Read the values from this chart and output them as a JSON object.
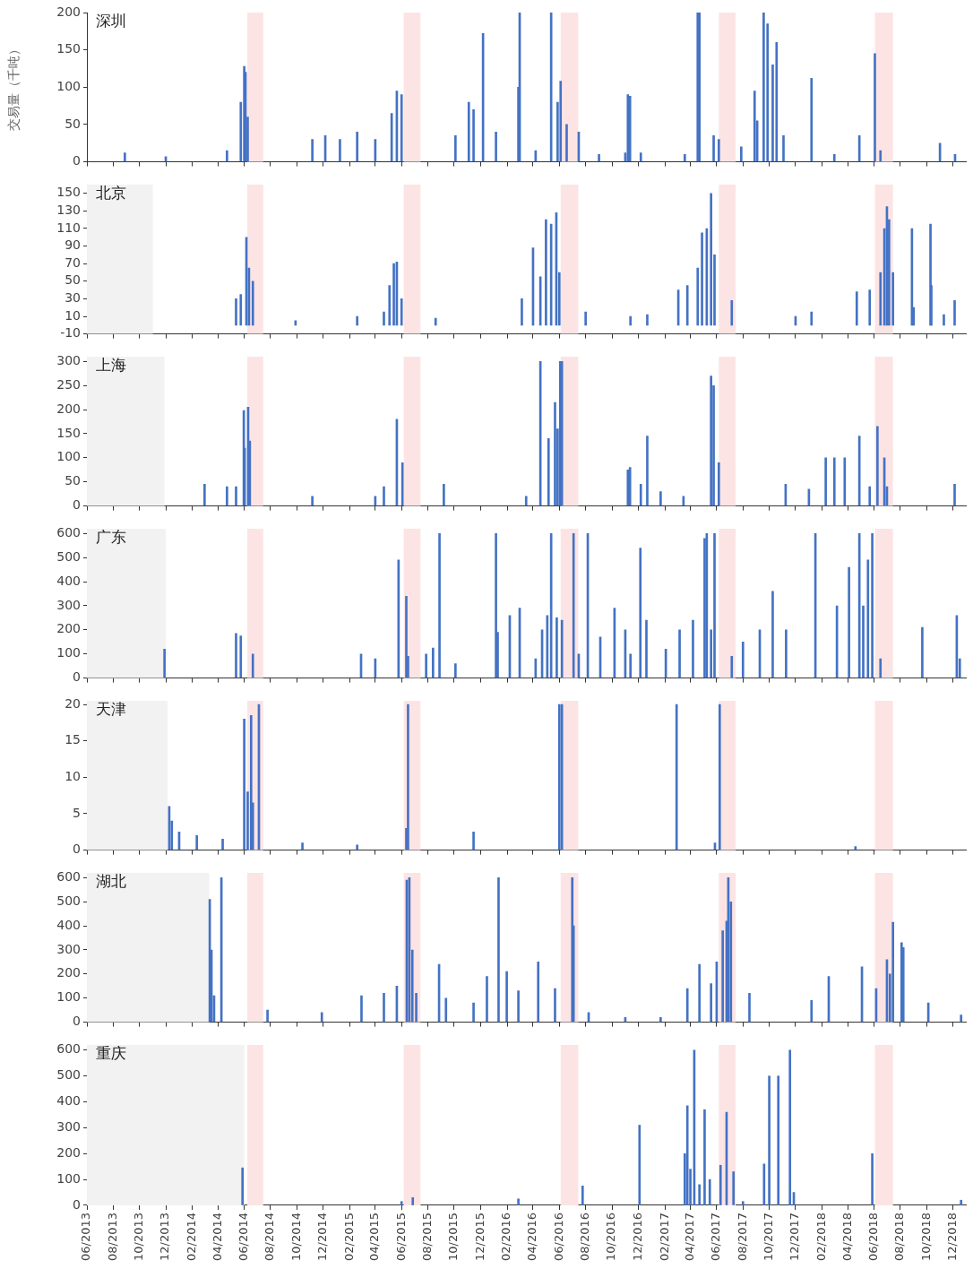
{
  "chart_data": [
    {
      "type": "bar",
      "title": "深圳",
      "ylabel": "交易量（千吨）",
      "color": "#4472c4",
      "tick_labels": "y",
      "x": [
        "2013-08-28",
        "2013-12-01",
        "2014-04-22",
        "2014-05-24",
        "2014-06-01",
        "2014-06-04",
        "2014-06-09",
        "2014-11-06",
        "2014-12-06",
        "2015-01-09",
        "2015-02-18",
        "2015-04-01",
        "2015-05-09",
        "2015-05-21",
        "2015-06-01",
        "2015-10-04",
        "2015-11-04",
        "2015-11-15",
        "2015-12-07",
        "2016-01-06",
        "2016-02-27",
        "2016-03-01",
        "2016-04-07",
        "2016-05-13",
        "2016-05-28",
        "2016-06-04",
        "2016-06-18",
        "2016-07-16",
        "2016-09-01",
        "2016-11-01",
        "2016-11-07",
        "2016-11-12",
        "2016-12-07",
        "2017-03-19",
        "2017-04-18",
        "2017-04-22",
        "2017-05-25",
        "2017-06-06",
        "2017-07-28",
        "2017-08-28",
        "2017-09-03",
        "2017-09-18",
        "2017-09-27",
        "2017-10-09",
        "2017-10-18",
        "2017-11-03",
        "2018-01-07",
        "2018-03-01",
        "2018-04-28",
        "2018-06-03",
        "2018-06-16",
        "2018-11-01",
        "2018-12-06"
      ],
      "values": [
        12,
        7,
        15,
        80,
        128,
        120,
        60,
        30,
        35,
        30,
        40,
        30,
        65,
        95,
        90,
        35,
        80,
        70,
        172,
        40,
        100,
        200,
        15,
        200,
        80,
        108,
        50,
        40,
        10,
        12,
        90,
        88,
        12,
        10,
        200,
        200,
        35,
        30,
        20,
        95,
        55,
        200,
        185,
        130,
        160,
        35,
        112,
        10,
        35,
        145,
        15,
        25,
        10
      ],
      "xlim": [
        "2013-06-01",
        "2018-12-31"
      ],
      "ylim": [
        0,
        200
      ],
      "yticks": [
        0,
        50,
        100,
        150,
        200
      ],
      "xticks": [
        {
          "value": "2013-06",
          "label": null
        },
        {
          "value": "2013-08",
          "label": null
        },
        {
          "value": "2013-10",
          "label": null
        },
        {
          "value": "2013-12",
          "label": null
        },
        {
          "value": "2014-02",
          "label": null
        },
        {
          "value": "2014-04",
          "label": null
        },
        {
          "value": "2014-06",
          "label": null
        },
        {
          "value": "2014-08",
          "label": null
        },
        {
          "value": "2014-10",
          "label": null
        },
        {
          "value": "2014-12",
          "label": null
        },
        {
          "value": "2015-02",
          "label": null
        },
        {
          "value": "2015-04",
          "label": null
        },
        {
          "value": "2015-06",
          "label": null
        },
        {
          "value": "2015-08",
          "label": null
        },
        {
          "value": "2015-10",
          "label": null
        },
        {
          "value": "2015-12",
          "label": null
        },
        {
          "value": "2016-02",
          "label": null
        },
        {
          "value": "2016-04",
          "label": null
        },
        {
          "value": "2016-06",
          "label": null
        },
        {
          "value": "2016-08",
          "label": null
        },
        {
          "value": "2016-10",
          "label": null
        },
        {
          "value": "2016-12",
          "label": null
        },
        {
          "value": "2017-02",
          "label": null
        },
        {
          "value": "2017-04",
          "label": null
        },
        {
          "value": "2017-06",
          "label": null
        },
        {
          "value": "2017-08",
          "label": null
        },
        {
          "value": "2017-10",
          "label": null
        },
        {
          "value": "2017-12",
          "label": null
        },
        {
          "value": "2018-02",
          "label": null
        },
        {
          "value": "2018-04",
          "label": null
        },
        {
          "value": "2018-06",
          "label": null
        },
        {
          "value": "2018-08",
          "label": null
        },
        {
          "value": "2018-10",
          "label": null
        },
        {
          "value": "2018-12",
          "label": null
        }
      ],
      "bands": [
        {
          "axis": "x",
          "from": "2014-06-08",
          "to": "2014-07-15",
          "color": "#fde4e4"
        },
        {
          "axis": "x",
          "from": "2015-06-06",
          "to": "2015-07-15",
          "color": "#fde4e4"
        },
        {
          "axis": "x",
          "from": "2016-06-04",
          "to": "2016-07-15",
          "color": "#fde4e4"
        },
        {
          "axis": "x",
          "from": "2017-06-06",
          "to": "2017-07-15",
          "color": "#fde4e4"
        },
        {
          "axis": "x",
          "from": "2018-06-03",
          "to": "2018-07-15",
          "color": "#fde4e4"
        }
      ]
    },
    {
      "type": "bar",
      "title": "北京",
      "color": "#4472c4",
      "tick_labels": "y",
      "x": [
        "2014-05-13",
        "2014-05-24",
        "2014-06-06",
        "2014-06-12",
        "2014-06-21",
        "2014-09-28",
        "2015-02-18",
        "2015-04-21",
        "2015-05-04",
        "2015-05-14",
        "2015-05-21",
        "2015-06-01",
        "2015-08-19",
        "2016-03-06",
        "2016-04-01",
        "2016-04-18",
        "2016-05-01",
        "2016-05-13",
        "2016-05-25",
        "2016-06-01",
        "2016-08-01",
        "2016-11-13",
        "2016-12-22",
        "2017-03-04",
        "2017-03-25",
        "2017-04-18",
        "2017-04-28",
        "2017-05-09",
        "2017-05-19",
        "2017-05-27",
        "2017-07-06",
        "2017-12-01",
        "2018-01-07",
        "2018-04-22",
        "2018-05-22",
        "2018-06-16",
        "2018-06-25",
        "2018-07-01",
        "2018-07-06",
        "2018-07-15",
        "2018-08-28",
        "2018-09-01",
        "2018-10-10",
        "2018-10-12",
        "2018-11-10",
        "2018-12-05"
      ],
      "values": [
        30,
        35,
        100,
        65,
        50,
        5,
        10,
        15,
        45,
        70,
        72,
        30,
        8,
        30,
        88,
        55,
        120,
        115,
        128,
        60,
        15,
        10,
        12,
        40,
        45,
        65,
        105,
        110,
        150,
        80,
        28,
        10,
        15,
        38,
        40,
        60,
        110,
        135,
        120,
        60,
        110,
        20,
        115,
        45,
        12,
        28
      ],
      "xlim": [
        "2013-06-01",
        "2018-12-31"
      ],
      "ylim": [
        -10,
        160
      ],
      "yticks": [
        -10,
        10,
        30,
        50,
        70,
        90,
        110,
        130,
        150
      ],
      "xticks": [
        {
          "value": "2013-06",
          "label": null
        },
        {
          "value": "2013-08",
          "label": null
        },
        {
          "value": "2013-10",
          "label": null
        },
        {
          "value": "2013-12",
          "label": null
        },
        {
          "value": "2014-02",
          "label": null
        },
        {
          "value": "2014-04",
          "label": null
        },
        {
          "value": "2014-06",
          "label": null
        },
        {
          "value": "2014-08",
          "label": null
        },
        {
          "value": "2014-10",
          "label": null
        },
        {
          "value": "2014-12",
          "label": null
        },
        {
          "value": "2015-02",
          "label": null
        },
        {
          "value": "2015-04",
          "label": null
        },
        {
          "value": "2015-06",
          "label": null
        },
        {
          "value": "2015-08",
          "label": null
        },
        {
          "value": "2015-10",
          "label": null
        },
        {
          "value": "2015-12",
          "label": null
        },
        {
          "value": "2016-02",
          "label": null
        },
        {
          "value": "2016-04",
          "label": null
        },
        {
          "value": "2016-06",
          "label": null
        },
        {
          "value": "2016-08",
          "label": null
        },
        {
          "value": "2016-10",
          "label": null
        },
        {
          "value": "2016-12",
          "label": null
        },
        {
          "value": "2017-02",
          "label": null
        },
        {
          "value": "2017-04",
          "label": null
        },
        {
          "value": "2017-06",
          "label": null
        },
        {
          "value": "2017-08",
          "label": null
        },
        {
          "value": "2017-10",
          "label": null
        },
        {
          "value": "2017-12",
          "label": null
        },
        {
          "value": "2018-02",
          "label": null
        },
        {
          "value": "2018-04",
          "label": null
        },
        {
          "value": "2018-06",
          "label": null
        },
        {
          "value": "2018-08",
          "label": null
        },
        {
          "value": "2018-10",
          "label": null
        },
        {
          "value": "2018-12",
          "label": null
        }
      ],
      "bands": [
        {
          "axis": "x",
          "from": "2013-06-01",
          "to": "2013-11-01",
          "color": "#f2f2f2"
        },
        {
          "axis": "x",
          "from": "2014-06-08",
          "to": "2014-07-15",
          "color": "#fde4e4"
        },
        {
          "axis": "x",
          "from": "2015-06-06",
          "to": "2015-07-15",
          "color": "#fde4e4"
        },
        {
          "axis": "x",
          "from": "2016-06-04",
          "to": "2016-07-15",
          "color": "#fde4e4"
        },
        {
          "axis": "x",
          "from": "2017-06-06",
          "to": "2017-07-15",
          "color": "#fde4e4"
        },
        {
          "axis": "x",
          "from": "2018-06-03",
          "to": "2018-07-15",
          "color": "#fde4e4"
        }
      ]
    },
    {
      "type": "bar",
      "title": "上海",
      "color": "#4472c4",
      "tick_labels": "y",
      "x": [
        "2014-03-01",
        "2014-04-22",
        "2014-05-13",
        "2014-05-31",
        "2014-06-02",
        "2014-06-10",
        "2014-06-14",
        "2014-11-06",
        "2015-04-01",
        "2015-04-21",
        "2015-05-21",
        "2015-06-03",
        "2015-09-07",
        "2016-03-16",
        "2016-04-18",
        "2016-05-07",
        "2016-05-22",
        "2016-05-28",
        "2016-06-03",
        "2016-06-07",
        "2016-11-07",
        "2016-11-12",
        "2016-12-07",
        "2016-12-22",
        "2017-01-22",
        "2017-03-16",
        "2017-05-19",
        "2017-05-25",
        "2017-06-06",
        "2017-11-08",
        "2018-01-01",
        "2018-02-09",
        "2018-03-01",
        "2018-03-25",
        "2018-04-28",
        "2018-05-22",
        "2018-06-09",
        "2018-06-25",
        "2018-07-01",
        "2018-12-05"
      ],
      "values": [
        45,
        40,
        40,
        198,
        120,
        205,
        135,
        20,
        20,
        40,
        180,
        90,
        45,
        20,
        300,
        140,
        215,
        160,
        300,
        300,
        75,
        80,
        45,
        145,
        30,
        20,
        270,
        250,
        90,
        45,
        35,
        100,
        100,
        100,
        145,
        40,
        165,
        100,
        40,
        45
      ],
      "xlim": [
        "2013-06-01",
        "2018-12-31"
      ],
      "ylim": [
        0,
        310
      ],
      "yticks": [
        0,
        50,
        100,
        150,
        200,
        250,
        300
      ],
      "xticks": [
        {
          "value": "2013-06",
          "label": null
        },
        {
          "value": "2013-08",
          "label": null
        },
        {
          "value": "2013-10",
          "label": null
        },
        {
          "value": "2013-12",
          "label": null
        },
        {
          "value": "2014-02",
          "label": null
        },
        {
          "value": "2014-04",
          "label": null
        },
        {
          "value": "2014-06",
          "label": null
        },
        {
          "value": "2014-08",
          "label": null
        },
        {
          "value": "2014-10",
          "label": null
        },
        {
          "value": "2014-12",
          "label": null
        },
        {
          "value": "2015-02",
          "label": null
        },
        {
          "value": "2015-04",
          "label": null
        },
        {
          "value": "2015-06",
          "label": null
        },
        {
          "value": "2015-08",
          "label": null
        },
        {
          "value": "2015-10",
          "label": null
        },
        {
          "value": "2015-12",
          "label": null
        },
        {
          "value": "2016-02",
          "label": null
        },
        {
          "value": "2016-04",
          "label": null
        },
        {
          "value": "2016-06",
          "label": null
        },
        {
          "value": "2016-08",
          "label": null
        },
        {
          "value": "2016-10",
          "label": null
        },
        {
          "value": "2016-12",
          "label": null
        },
        {
          "value": "2017-02",
          "label": null
        },
        {
          "value": "2017-04",
          "label": null
        },
        {
          "value": "2017-06",
          "label": null
        },
        {
          "value": "2017-08",
          "label": null
        },
        {
          "value": "2017-10",
          "label": null
        },
        {
          "value": "2017-12",
          "label": null
        },
        {
          "value": "2018-02",
          "label": null
        },
        {
          "value": "2018-04",
          "label": null
        },
        {
          "value": "2018-06",
          "label": null
        },
        {
          "value": "2018-08",
          "label": null
        },
        {
          "value": "2018-10",
          "label": null
        },
        {
          "value": "2018-12",
          "label": null
        }
      ],
      "bands": [
        {
          "axis": "x",
          "from": "2013-06-01",
          "to": "2013-11-28",
          "color": "#f2f2f2"
        },
        {
          "axis": "x",
          "from": "2014-06-08",
          "to": "2014-07-15",
          "color": "#fde4e4"
        },
        {
          "axis": "x",
          "from": "2015-06-06",
          "to": "2015-07-15",
          "color": "#fde4e4"
        },
        {
          "axis": "x",
          "from": "2016-06-04",
          "to": "2016-07-15",
          "color": "#fde4e4"
        },
        {
          "axis": "x",
          "from": "2017-06-06",
          "to": "2017-07-15",
          "color": "#fde4e4"
        },
        {
          "axis": "x",
          "from": "2018-06-03",
          "to": "2018-07-15",
          "color": "#fde4e4"
        }
      ]
    },
    {
      "type": "bar",
      "title": "广东",
      "color": "#4472c4",
      "tick_labels": "y",
      "x": [
        "2013-11-28",
        "2014-05-13",
        "2014-05-24",
        "2014-06-21",
        "2015-02-27",
        "2015-04-01",
        "2015-05-25",
        "2015-06-12",
        "2015-06-16",
        "2015-07-28",
        "2015-08-13",
        "2015-08-28",
        "2015-10-04",
        "2016-01-06",
        "2016-01-10",
        "2016-02-07",
        "2016-03-01",
        "2016-04-07",
        "2016-04-22",
        "2016-05-04",
        "2016-05-13",
        "2016-05-26",
        "2016-06-07",
        "2016-07-04",
        "2016-07-16",
        "2016-08-06",
        "2016-09-04",
        "2016-10-07",
        "2016-11-01",
        "2016-11-13",
        "2016-12-06",
        "2016-12-20",
        "2017-02-03",
        "2017-03-07",
        "2017-04-07",
        "2017-05-04",
        "2017-05-09",
        "2017-05-19",
        "2017-05-27",
        "2017-07-06",
        "2017-08-01",
        "2017-09-09",
        "2017-10-09",
        "2017-11-09",
        "2018-01-16",
        "2018-03-07",
        "2018-04-04",
        "2018-04-28",
        "2018-05-07",
        "2018-05-18",
        "2018-05-28",
        "2018-06-16",
        "2018-09-21",
        "2018-12-10",
        "2018-12-17"
      ],
      "values": [
        120,
        185,
        175,
        100,
        100,
        80,
        490,
        340,
        90,
        100,
        125,
        600,
        60,
        600,
        190,
        260,
        290,
        80,
        200,
        260,
        600,
        250,
        240,
        600,
        100,
        600,
        170,
        290,
        200,
        100,
        540,
        240,
        120,
        200,
        240,
        580,
        600,
        200,
        600,
        90,
        150,
        200,
        360,
        200,
        600,
        300,
        460,
        600,
        300,
        490,
        600,
        80,
        210,
        260,
        80
      ],
      "xlim": [
        "2013-06-01",
        "2018-12-31"
      ],
      "ylim": [
        0,
        620
      ],
      "yticks": [
        0,
        100,
        200,
        300,
        400,
        500,
        600
      ],
      "xticks": [
        {
          "value": "2013-06",
          "label": null
        },
        {
          "value": "2013-08",
          "label": null
        },
        {
          "value": "2013-10",
          "label": null
        },
        {
          "value": "2013-12",
          "label": null
        },
        {
          "value": "2014-02",
          "label": null
        },
        {
          "value": "2014-04",
          "label": null
        },
        {
          "value": "2014-06",
          "label": null
        },
        {
          "value": "2014-08",
          "label": null
        },
        {
          "value": "2014-10",
          "label": null
        },
        {
          "value": "2014-12",
          "label": null
        },
        {
          "value": "2015-02",
          "label": null
        },
        {
          "value": "2015-04",
          "label": null
        },
        {
          "value": "2015-06",
          "label": null
        },
        {
          "value": "2015-08",
          "label": null
        },
        {
          "value": "2015-10",
          "label": null
        },
        {
          "value": "2015-12",
          "label": null
        },
        {
          "value": "2016-02",
          "label": null
        },
        {
          "value": "2016-04",
          "label": null
        },
        {
          "value": "2016-06",
          "label": null
        },
        {
          "value": "2016-08",
          "label": null
        },
        {
          "value": "2016-10",
          "label": null
        },
        {
          "value": "2016-12",
          "label": null
        },
        {
          "value": "2017-02",
          "label": null
        },
        {
          "value": "2017-04",
          "label": null
        },
        {
          "value": "2017-06",
          "label": null
        },
        {
          "value": "2017-08",
          "label": null
        },
        {
          "value": "2017-10",
          "label": null
        },
        {
          "value": "2017-12",
          "label": null
        },
        {
          "value": "2018-02",
          "label": null
        },
        {
          "value": "2018-04",
          "label": null
        },
        {
          "value": "2018-06",
          "label": null
        },
        {
          "value": "2018-08",
          "label": null
        },
        {
          "value": "2018-10",
          "label": null
        },
        {
          "value": "2018-12",
          "label": null
        }
      ],
      "bands": [
        {
          "axis": "x",
          "from": "2013-06-01",
          "to": "2013-12-01",
          "color": "#f2f2f2"
        },
        {
          "axis": "x",
          "from": "2014-06-08",
          "to": "2014-07-15",
          "color": "#fde4e4"
        },
        {
          "axis": "x",
          "from": "2015-06-06",
          "to": "2015-07-15",
          "color": "#fde4e4"
        },
        {
          "axis": "x",
          "from": "2016-06-04",
          "to": "2016-07-15",
          "color": "#fde4e4"
        },
        {
          "axis": "x",
          "from": "2017-06-06",
          "to": "2017-07-15",
          "color": "#fde4e4"
        },
        {
          "axis": "x",
          "from": "2018-06-03",
          "to": "2018-07-15",
          "color": "#fde4e4"
        }
      ]
    },
    {
      "type": "bar",
      "title": "天津",
      "color": "#4472c4",
      "tick_labels": "y",
      "x": [
        "2013-12-09",
        "2013-12-15",
        "2014-01-01",
        "2014-02-11",
        "2014-04-12",
        "2014-06-01",
        "2014-06-09",
        "2014-06-17",
        "2014-06-21",
        "2014-07-05",
        "2014-10-14",
        "2015-02-18",
        "2015-06-12",
        "2015-06-16",
        "2015-11-15",
        "2016-06-01",
        "2016-06-07",
        "2017-02-28",
        "2017-05-28",
        "2017-06-08",
        "2018-04-19"
      ],
      "values": [
        6,
        4,
        2.5,
        2,
        1.5,
        18,
        8,
        18.5,
        6.5,
        20,
        1,
        0.7,
        3,
        20,
        2.5,
        20,
        20,
        20,
        1,
        20,
        0.5
      ],
      "xlim": [
        "2013-06-01",
        "2018-12-31"
      ],
      "ylim": [
        0,
        20.5
      ],
      "yticks": [
        0,
        5,
        10,
        15,
        20
      ],
      "xticks": [
        {
          "value": "2013-06",
          "label": null
        },
        {
          "value": "2013-08",
          "label": null
        },
        {
          "value": "2013-10",
          "label": null
        },
        {
          "value": "2013-12",
          "label": null
        },
        {
          "value": "2014-02",
          "label": null
        },
        {
          "value": "2014-04",
          "label": null
        },
        {
          "value": "2014-06",
          "label": null
        },
        {
          "value": "2014-08",
          "label": null
        },
        {
          "value": "2014-10",
          "label": null
        },
        {
          "value": "2014-12",
          "label": null
        },
        {
          "value": "2015-02",
          "label": null
        },
        {
          "value": "2015-04",
          "label": null
        },
        {
          "value": "2015-06",
          "label": null
        },
        {
          "value": "2015-08",
          "label": null
        },
        {
          "value": "2015-10",
          "label": null
        },
        {
          "value": "2015-12",
          "label": null
        },
        {
          "value": "2016-02",
          "label": null
        },
        {
          "value": "2016-04",
          "label": null
        },
        {
          "value": "2016-06",
          "label": null
        },
        {
          "value": "2016-08",
          "label": null
        },
        {
          "value": "2016-10",
          "label": null
        },
        {
          "value": "2016-12",
          "label": null
        },
        {
          "value": "2017-02",
          "label": null
        },
        {
          "value": "2017-04",
          "label": null
        },
        {
          "value": "2017-06",
          "label": null
        },
        {
          "value": "2017-08",
          "label": null
        },
        {
          "value": "2017-10",
          "label": null
        },
        {
          "value": "2017-12",
          "label": null
        },
        {
          "value": "2018-02",
          "label": null
        },
        {
          "value": "2018-04",
          "label": null
        },
        {
          "value": "2018-06",
          "label": null
        },
        {
          "value": "2018-08",
          "label": null
        },
        {
          "value": "2018-10",
          "label": null
        },
        {
          "value": "2018-12",
          "label": null
        }
      ],
      "bands": [
        {
          "axis": "x",
          "from": "2013-06-01",
          "to": "2013-12-05",
          "color": "#f2f2f2"
        },
        {
          "axis": "x",
          "from": "2014-06-08",
          "to": "2014-07-15",
          "color": "#fde4e4"
        },
        {
          "axis": "x",
          "from": "2015-06-06",
          "to": "2015-07-15",
          "color": "#fde4e4"
        },
        {
          "axis": "x",
          "from": "2016-06-04",
          "to": "2016-07-15",
          "color": "#fde4e4"
        },
        {
          "axis": "x",
          "from": "2017-06-06",
          "to": "2017-07-15",
          "color": "#fde4e4"
        },
        {
          "axis": "x",
          "from": "2018-06-03",
          "to": "2018-07-15",
          "color": "#fde4e4"
        }
      ]
    },
    {
      "type": "bar",
      "title": "湖北",
      "color": "#4472c4",
      "tick_labels": "y",
      "x": [
        "2014-03-13",
        "2014-03-17",
        "2014-03-23",
        "2014-04-09",
        "2014-07-25",
        "2014-11-28",
        "2015-02-28",
        "2015-04-21",
        "2015-05-21",
        "2015-06-13",
        "2015-06-19",
        "2015-06-26",
        "2015-07-05",
        "2015-08-27",
        "2015-09-12",
        "2015-11-15",
        "2015-12-16",
        "2016-01-12",
        "2016-01-31",
        "2016-02-27",
        "2016-04-13",
        "2016-05-22",
        "2016-07-01",
        "2016-07-04",
        "2016-08-08",
        "2016-11-01",
        "2017-01-22",
        "2017-03-25",
        "2017-04-22",
        "2017-05-19",
        "2017-06-01",
        "2017-06-15",
        "2017-06-24",
        "2017-06-28",
        "2017-07-04",
        "2017-08-16",
        "2018-01-07",
        "2018-02-16",
        "2018-05-04",
        "2018-06-06",
        "2018-07-01",
        "2018-07-08",
        "2018-07-15",
        "2018-08-04",
        "2018-08-08",
        "2018-10-05",
        "2018-12-20"
      ],
      "values": [
        510,
        300,
        110,
        600,
        50,
        40,
        110,
        120,
        150,
        590,
        600,
        300,
        120,
        240,
        100,
        80,
        190,
        600,
        210,
        130,
        250,
        140,
        600,
        400,
        40,
        20,
        20,
        140,
        240,
        160,
        250,
        380,
        420,
        600,
        500,
        120,
        90,
        190,
        230,
        140,
        260,
        200,
        415,
        330,
        310,
        80,
        30
      ],
      "xlim": [
        "2013-06-01",
        "2018-12-31"
      ],
      "ylim": [
        0,
        620
      ],
      "yticks": [
        0,
        100,
        200,
        300,
        400,
        500,
        600
      ],
      "xticks": [
        {
          "value": "2013-06",
          "label": null
        },
        {
          "value": "2013-08",
          "label": null
        },
        {
          "value": "2013-10",
          "label": null
        },
        {
          "value": "2013-12",
          "label": null
        },
        {
          "value": "2014-02",
          "label": null
        },
        {
          "value": "2014-04",
          "label": null
        },
        {
          "value": "2014-06",
          "label": null
        },
        {
          "value": "2014-08",
          "label": null
        },
        {
          "value": "2014-10",
          "label": null
        },
        {
          "value": "2014-12",
          "label": null
        },
        {
          "value": "2015-02",
          "label": null
        },
        {
          "value": "2015-04",
          "label": null
        },
        {
          "value": "2015-06",
          "label": null
        },
        {
          "value": "2015-08",
          "label": null
        },
        {
          "value": "2015-10",
          "label": null
        },
        {
          "value": "2015-12",
          "label": null
        },
        {
          "value": "2016-02",
          "label": null
        },
        {
          "value": "2016-04",
          "label": null
        },
        {
          "value": "2016-06",
          "label": null
        },
        {
          "value": "2016-08",
          "label": null
        },
        {
          "value": "2016-10",
          "label": null
        },
        {
          "value": "2016-12",
          "label": null
        },
        {
          "value": "2017-02",
          "label": null
        },
        {
          "value": "2017-04",
          "label": null
        },
        {
          "value": "2017-06",
          "label": null
        },
        {
          "value": "2017-08",
          "label": null
        },
        {
          "value": "2017-10",
          "label": null
        },
        {
          "value": "2017-12",
          "label": null
        },
        {
          "value": "2018-02",
          "label": null
        },
        {
          "value": "2018-04",
          "label": null
        },
        {
          "value": "2018-06",
          "label": null
        },
        {
          "value": "2018-08",
          "label": null
        },
        {
          "value": "2018-10",
          "label": null
        },
        {
          "value": "2018-12",
          "label": null
        }
      ],
      "bands": [
        {
          "axis": "x",
          "from": "2013-06-01",
          "to": "2014-03-12",
          "color": "#f2f2f2"
        },
        {
          "axis": "x",
          "from": "2014-06-08",
          "to": "2014-07-15",
          "color": "#fde4e4"
        },
        {
          "axis": "x",
          "from": "2015-06-06",
          "to": "2015-07-15",
          "color": "#fde4e4"
        },
        {
          "axis": "x",
          "from": "2016-06-04",
          "to": "2016-07-15",
          "color": "#fde4e4"
        },
        {
          "axis": "x",
          "from": "2017-06-06",
          "to": "2017-07-15",
          "color": "#fde4e4"
        },
        {
          "axis": "x",
          "from": "2018-06-03",
          "to": "2018-07-15",
          "color": "#fde4e4"
        }
      ]
    },
    {
      "type": "bar",
      "title": "重庆",
      "color": "#4472c4",
      "x": [
        "2014-05-28",
        "2015-06-01",
        "2015-06-27",
        "2016-02-27",
        "2016-07-25",
        "2016-12-04",
        "2017-03-19",
        "2017-03-25",
        "2017-04-01",
        "2017-04-10",
        "2017-04-22",
        "2017-05-04",
        "2017-05-16",
        "2017-06-10",
        "2017-06-24",
        "2017-07-10",
        "2017-08-01",
        "2017-09-19",
        "2017-10-01",
        "2017-10-22",
        "2017-11-18",
        "2017-11-27",
        "2018-05-28",
        "2018-12-20"
      ],
      "values": [
        145,
        15,
        30,
        25,
        75,
        310,
        200,
        385,
        140,
        600,
        80,
        370,
        100,
        155,
        360,
        130,
        15,
        160,
        500,
        500,
        600,
        50,
        200,
        20
      ],
      "xlim": [
        "2013-06-01",
        "2018-12-31"
      ],
      "ylim": [
        0,
        620
      ],
      "yticks": [
        0,
        100,
        200,
        300,
        400,
        500,
        600
      ],
      "xticks": [
        {
          "value": "2013-06",
          "label": "06/2013"
        },
        {
          "value": "2013-08",
          "label": "08/2013"
        },
        {
          "value": "2013-10",
          "label": "10/2013"
        },
        {
          "value": "2013-12",
          "label": "12/2013"
        },
        {
          "value": "2014-02",
          "label": "02/2014"
        },
        {
          "value": "2014-04",
          "label": "04/2014"
        },
        {
          "value": "2014-06",
          "label": "06/2014"
        },
        {
          "value": "2014-08",
          "label": "08/2014"
        },
        {
          "value": "2014-10",
          "label": "10/2014"
        },
        {
          "value": "2014-12",
          "label": "12/2014"
        },
        {
          "value": "2015-02",
          "label": "02/2015"
        },
        {
          "value": "2015-04",
          "label": "04/2015"
        },
        {
          "value": "2015-06",
          "label": "06/2015"
        },
        {
          "value": "2015-08",
          "label": "08/2015"
        },
        {
          "value": "2015-10",
          "label": "10/2015"
        },
        {
          "value": "2015-12",
          "label": "12/2015"
        },
        {
          "value": "2016-02",
          "label": "02/2016"
        },
        {
          "value": "2016-04",
          "label": "04/2016"
        },
        {
          "value": "2016-06",
          "label": "06/2016"
        },
        {
          "value": "2016-08",
          "label": "08/2016"
        },
        {
          "value": "2016-10",
          "label": "10/2016"
        },
        {
          "value": "2016-12",
          "label": "12/2016"
        },
        {
          "value": "2017-02",
          "label": "02/2017"
        },
        {
          "value": "2017-04",
          "label": "04/2017"
        },
        {
          "value": "2017-06",
          "label": "06/2017"
        },
        {
          "value": "2017-08",
          "label": "08/2017"
        },
        {
          "value": "2017-10",
          "label": "10/2017"
        },
        {
          "value": "2017-12",
          "label": "12/2017"
        },
        {
          "value": "2018-02",
          "label": "02/2018"
        },
        {
          "value": "2018-04",
          "label": "04/2018"
        },
        {
          "value": "2018-06",
          "label": "06/2018"
        },
        {
          "value": "2018-08",
          "label": "08/2018"
        },
        {
          "value": "2018-10",
          "label": "10/2018"
        },
        {
          "value": "2018-12",
          "label": "12/2018"
        }
      ],
      "bands": [
        {
          "axis": "x",
          "from": "2013-06-01",
          "to": "2014-06-01",
          "color": "#f2f2f2"
        },
        {
          "axis": "x",
          "from": "2014-06-08",
          "to": "2014-07-15",
          "color": "#fde4e4"
        },
        {
          "axis": "x",
          "from": "2015-06-06",
          "to": "2015-07-15",
          "color": "#fde4e4"
        },
        {
          "axis": "x",
          "from": "2016-06-04",
          "to": "2016-07-15",
          "color": "#fde4e4"
        },
        {
          "axis": "x",
          "from": "2017-06-06",
          "to": "2017-07-15",
          "color": "#fde4e4"
        },
        {
          "axis": "x",
          "from": "2018-06-03",
          "to": "2018-07-15",
          "color": "#fde4e4"
        }
      ]
    }
  ]
}
